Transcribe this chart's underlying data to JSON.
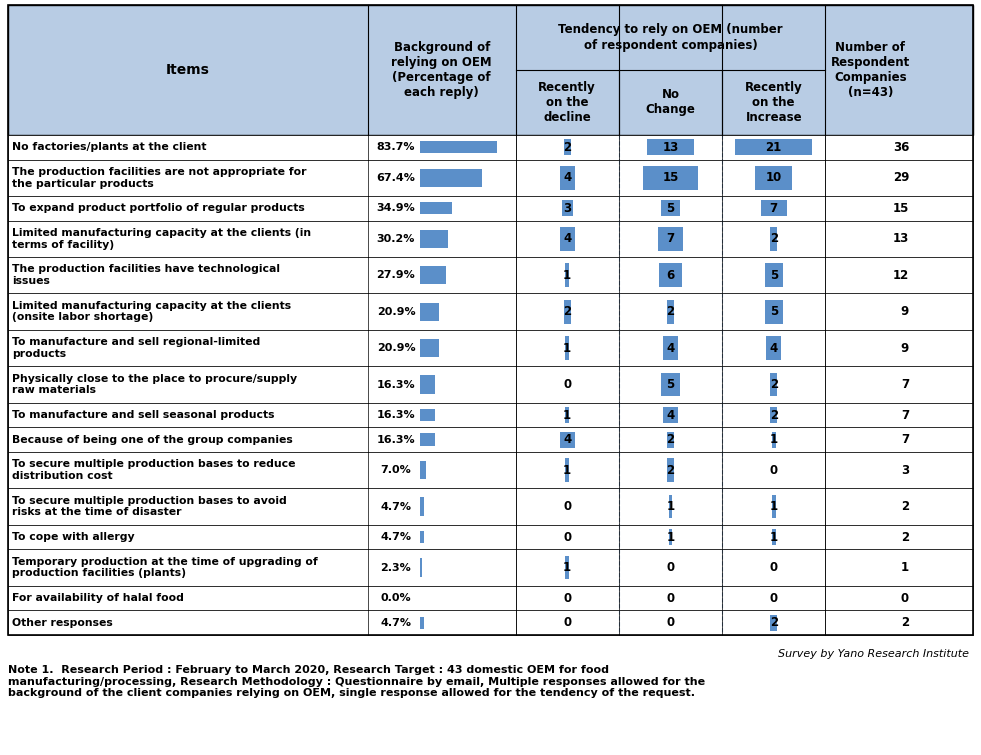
{
  "header_bg": "#b8cce4",
  "bar_color": "#5b8fc9",
  "rows": [
    {
      "label": "No factories/plants at the client",
      "pct": 83.7,
      "pct_str": "83.7%",
      "decline": 2,
      "nochange": 13,
      "increase": 21,
      "n": 36,
      "nlines": 1
    },
    {
      "label": "The production facilities are not appropriate for\nthe particular products",
      "pct": 67.4,
      "pct_str": "67.4%",
      "decline": 4,
      "nochange": 15,
      "increase": 10,
      "n": 29,
      "nlines": 2
    },
    {
      "label": "To expand product portfolio of regular products",
      "pct": 34.9,
      "pct_str": "34.9%",
      "decline": 3,
      "nochange": 5,
      "increase": 7,
      "n": 15,
      "nlines": 1
    },
    {
      "label": "Limited manufacturing capacity at the clients (in\nterms of facility)",
      "pct": 30.2,
      "pct_str": "30.2%",
      "decline": 4,
      "nochange": 7,
      "increase": 2,
      "n": 13,
      "nlines": 2
    },
    {
      "label": "The production facilities have technological\nissues",
      "pct": 27.9,
      "pct_str": "27.9%",
      "decline": 1,
      "nochange": 6,
      "increase": 5,
      "n": 12,
      "nlines": 2
    },
    {
      "label": "Limited manufacturing capacity at the clients\n(onsite labor shortage)",
      "pct": 20.9,
      "pct_str": "20.9%",
      "decline": 2,
      "nochange": 2,
      "increase": 5,
      "n": 9,
      "nlines": 2
    },
    {
      "label": "To manufacture and sell regional-limited\nproducts",
      "pct": 20.9,
      "pct_str": "20.9%",
      "decline": 1,
      "nochange": 4,
      "increase": 4,
      "n": 9,
      "nlines": 2
    },
    {
      "label": "Physically close to the place to procure/supply\nraw materials",
      "pct": 16.3,
      "pct_str": "16.3%",
      "decline": 0,
      "nochange": 5,
      "increase": 2,
      "n": 7,
      "nlines": 2
    },
    {
      "label": "To manufacture and sell seasonal products",
      "pct": 16.3,
      "pct_str": "16.3%",
      "decline": 1,
      "nochange": 4,
      "increase": 2,
      "n": 7,
      "nlines": 1
    },
    {
      "label": "Because of being one of the group companies",
      "pct": 16.3,
      "pct_str": "16.3%",
      "decline": 4,
      "nochange": 2,
      "increase": 1,
      "n": 7,
      "nlines": 1
    },
    {
      "label": "To secure multiple production bases to reduce\ndistribution cost",
      "pct": 7.0,
      "pct_str": "7.0%",
      "decline": 1,
      "nochange": 2,
      "increase": 0,
      "n": 3,
      "nlines": 2
    },
    {
      "label": "To secure multiple production bases to avoid\nrisks at the time of disaster",
      "pct": 4.7,
      "pct_str": "4.7%",
      "decline": 0,
      "nochange": 1,
      "increase": 1,
      "n": 2,
      "nlines": 2
    },
    {
      "label": "To cope with allergy",
      "pct": 4.7,
      "pct_str": "4.7%",
      "decline": 0,
      "nochange": 1,
      "increase": 1,
      "n": 2,
      "nlines": 1
    },
    {
      "label": "Temporary production at the time of upgrading of\nproduction facilities (plants)",
      "pct": 2.3,
      "pct_str": "2.3%",
      "decline": 1,
      "nochange": 0,
      "increase": 0,
      "n": 1,
      "nlines": 2
    },
    {
      "label": "For availability of halal food",
      "pct": 0.0,
      "pct_str": "0.0%",
      "decline": 0,
      "nochange": 0,
      "increase": 0,
      "n": 0,
      "nlines": 1
    },
    {
      "label": "Other responses",
      "pct": 4.7,
      "pct_str": "4.7%",
      "decline": 0,
      "nochange": 0,
      "increase": 2,
      "n": 2,
      "nlines": 1
    }
  ],
  "note": "Note 1.  Research Period : February to March 2020, Research Target : 43 domestic OEM for food\nmanufacturing/processing, Research Methodology : Questionnaire by email, Multiple responses allowed for the\nbackground of the client companies relying on OEM, single response allowed for the tendency of the request.",
  "survey_by": "Survey by Yano Research Institute",
  "figsize": [
    9.81,
    7.55
  ],
  "dpi": 100
}
